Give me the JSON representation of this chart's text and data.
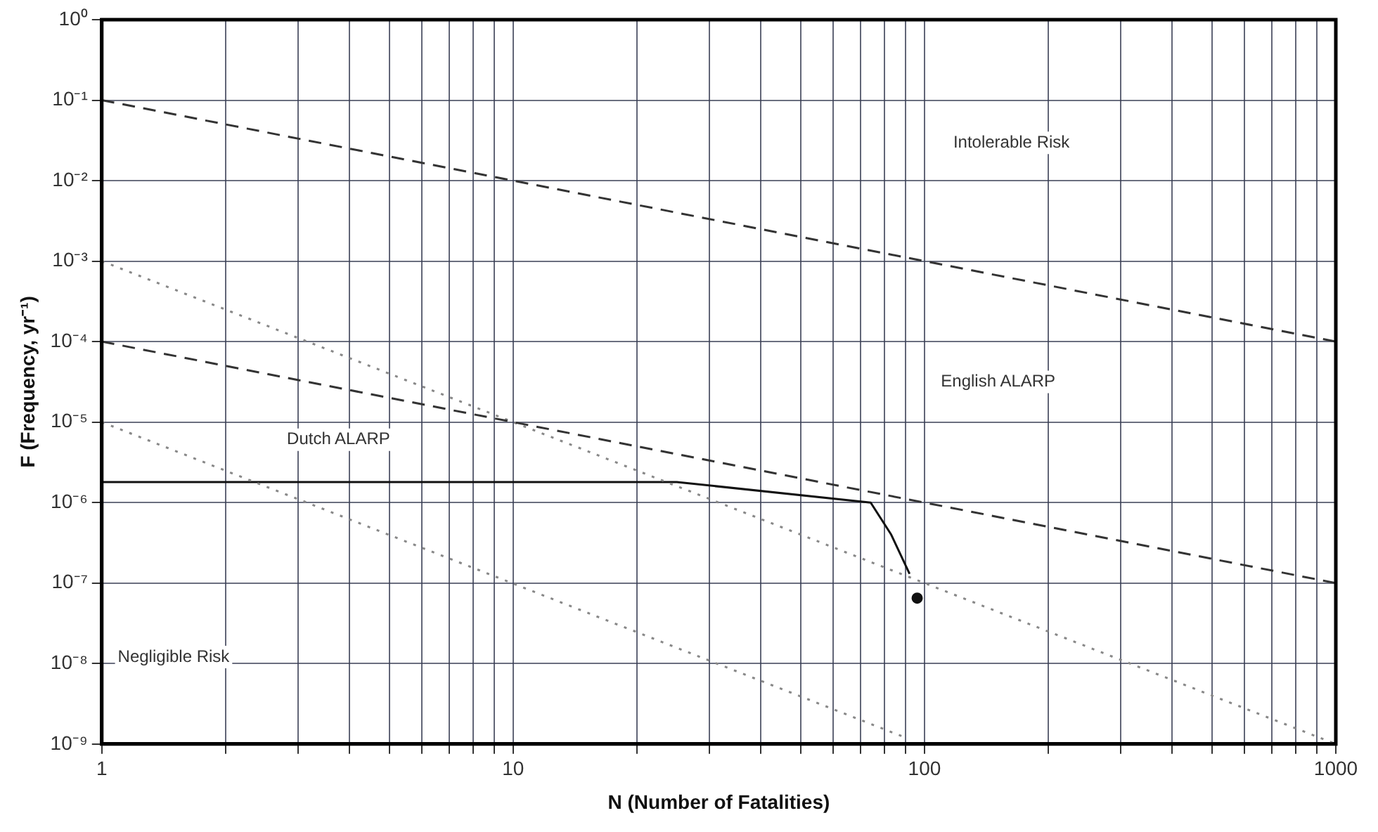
{
  "chart_data": {
    "type": "line",
    "xlabel": "N (Number of Fatalities)",
    "ylabel": "F (Frequency, yr⁻¹)",
    "log": "xy",
    "grid": true,
    "legend": false,
    "marker": "none",
    "xlim": [
      1,
      1000
    ],
    "ylim": [
      1e-09,
      1
    ],
    "xticks": [
      1,
      {
        "value": 2,
        "label": null
      },
      {
        "value": 3,
        "label": null
      },
      {
        "value": 4,
        "label": null
      },
      {
        "value": 5,
        "label": null
      },
      {
        "value": 6,
        "label": null
      },
      {
        "value": 7,
        "label": null
      },
      {
        "value": 8,
        "label": null
      },
      {
        "value": 9,
        "label": null
      },
      10,
      {
        "value": 20,
        "label": null
      },
      {
        "value": 30,
        "label": null
      },
      {
        "value": 40,
        "label": null
      },
      {
        "value": 50,
        "label": null
      },
      {
        "value": 60,
        "label": null
      },
      {
        "value": 70,
        "label": null
      },
      {
        "value": 80,
        "label": null
      },
      {
        "value": 90,
        "label": null
      },
      100,
      {
        "value": 200,
        "label": null
      },
      {
        "value": 300,
        "label": null
      },
      {
        "value": 400,
        "label": null
      },
      {
        "value": 500,
        "label": null
      },
      {
        "value": 600,
        "label": null
      },
      {
        "value": 700,
        "label": null
      },
      {
        "value": 800,
        "label": null
      },
      {
        "value": 900,
        "label": null
      },
      1000
    ],
    "yticks": [
      {
        "value": 1e-09,
        "label": "10⁻⁹"
      },
      {
        "value": 1e-08,
        "label": "10⁻⁸"
      },
      {
        "value": 1e-07,
        "label": "10⁻⁷"
      },
      {
        "value": 1e-06,
        "label": "10⁻⁶"
      },
      {
        "value": 1e-05,
        "label": "10⁻⁵"
      },
      {
        "value": 0.0001,
        "label": "10⁻⁴"
      },
      {
        "value": 0.001,
        "label": "10⁻³"
      },
      {
        "value": 0.01,
        "label": "10⁻²"
      },
      {
        "value": 0.1,
        "label": "10⁻¹"
      },
      {
        "value": 1,
        "label": "10⁰"
      }
    ],
    "series": [
      {
        "type": "line",
        "color": "#333333",
        "line_style": "dashed",
        "x": [
          1,
          1000
        ],
        "values": [
          0.1,
          0.0001
        ]
      },
      {
        "type": "line",
        "color": "#333333",
        "line_style": "dashed",
        "x": [
          1,
          1000
        ],
        "values": [
          0.0001,
          1e-07
        ]
      },
      {
        "type": "line",
        "color": "#888888",
        "line_style": "dotted",
        "x": [
          1,
          1000
        ],
        "values": [
          0.001,
          1e-09
        ]
      },
      {
        "type": "line",
        "color": "#888888",
        "line_style": "dotted",
        "x": [
          1,
          90
        ],
        "values": [
          1e-05,
          1.2e-09
        ]
      },
      {
        "type": "line",
        "color": "#111111",
        "line_style": "solid",
        "x": [
          1,
          25,
          74,
          83,
          92
        ],
        "values": [
          1.8e-06,
          1.8e-06,
          1e-06,
          4e-07,
          1.3e-07
        ]
      },
      {
        "type": "scatter",
        "color": "#111111",
        "marker": "circle",
        "x": [
          96
        ],
        "values": [
          6.5e-08
        ]
      }
    ],
    "annotations": [
      "Intolerable Risk",
      "English ALARP",
      "Dutch ALARP",
      "Negligible Risk"
    ]
  }
}
